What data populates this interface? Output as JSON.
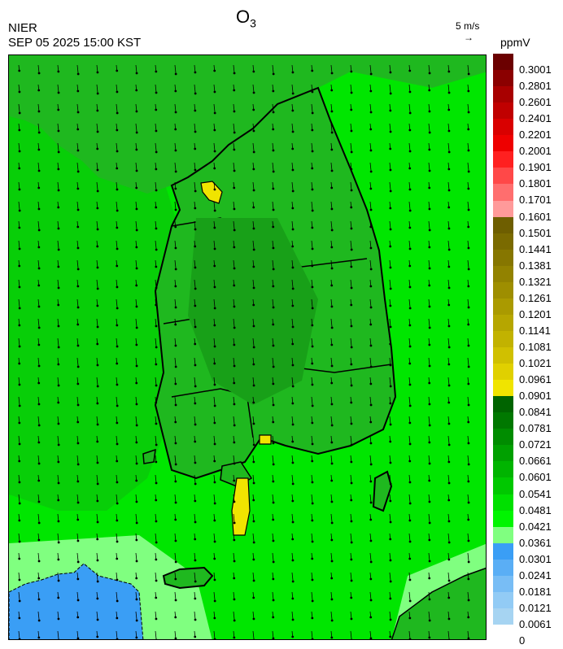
{
  "header": {
    "agency": "NIER",
    "timestamp": "SEP 05 2025 15:00 KST",
    "title_main": "O",
    "title_sub": "3",
    "wind_ref_label": "5 m/s",
    "wind_ref_arrow": "→",
    "unit": "ppmV"
  },
  "scale": {
    "labels": [
      "0.3001",
      "0.2801",
      "0.2601",
      "0.2401",
      "0.2201",
      "0.2001",
      "0.1901",
      "0.1801",
      "0.1701",
      "0.1601",
      "0.1501",
      "0.1441",
      "0.1381",
      "0.1321",
      "0.1261",
      "0.1201",
      "0.1141",
      "0.1081",
      "0.1021",
      "0.0961",
      "0.0901",
      "0.0841",
      "0.0781",
      "0.0721",
      "0.0661",
      "0.0601",
      "0.0541",
      "0.0481",
      "0.0421",
      "0.0361",
      "0.0301",
      "0.0241",
      "0.0181",
      "0.0121",
      "0.0061",
      "0"
    ],
    "colors": [
      "#6b0000",
      "#8b0000",
      "#a80000",
      "#c00000",
      "#d90000",
      "#ee0000",
      "#ff2020",
      "#ff4848",
      "#ff6e6e",
      "#ff9a9a",
      "#6e5e00",
      "#7a6a00",
      "#867600",
      "#928200",
      "#9e8e00",
      "#aa9a00",
      "#b6a600",
      "#c2b200",
      "#d0c000",
      "#e0d000",
      "#f0e400",
      "#006400",
      "#007800",
      "#008c00",
      "#00a000",
      "#00b400",
      "#00c800",
      "#00e000",
      "#00f500",
      "#80ff80",
      "#3a9ef5",
      "#5aaef5",
      "#78bdf5",
      "#92cbf5",
      "#a6d4f2"
    ]
  },
  "map": {
    "ocean_color": "#00e600",
    "land_fill": "#1fb81f",
    "land_shadow_color": "#18a018",
    "low_ozone_color": "#3a9ef5",
    "light_zone_color": "#80ff80",
    "hotspot_color": "#f0e400",
    "wind": {
      "u": -0.35,
      "v": 1.0
    }
  }
}
